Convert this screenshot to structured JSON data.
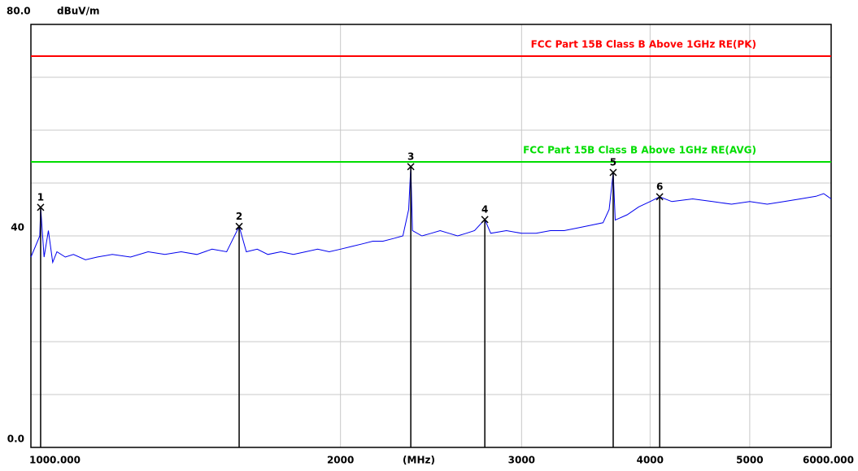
{
  "chart_data": {
    "type": "line",
    "xscale": "log",
    "y_unit": "dBuV/m",
    "x_unit": "(MHz)",
    "xlim": [
      1000,
      6000
    ],
    "ylim": [
      0,
      80
    ],
    "xticks": [
      {
        "value": 1000,
        "label": "1000.000"
      },
      2000,
      3000,
      4000,
      5000,
      {
        "value": 6000,
        "label": "6000.000"
      }
    ],
    "yticks": [
      {
        "value": 0,
        "label": "0.0"
      },
      40,
      {
        "value": 80,
        "label": "80.0"
      }
    ],
    "ygrid": [
      10,
      20,
      30,
      40,
      50,
      60,
      70
    ],
    "grid": true,
    "limits": [
      {
        "name": "FCC Part 15B Class B Above 1GHz RE(PK)",
        "value": 74,
        "color": "#ff0000"
      },
      {
        "name": "FCC Part 15B Class B Above 1GHz RE(AVG)",
        "value": 54,
        "color": "#00dd00"
      }
    ],
    "markers": [
      {
        "label": "1",
        "x": 1022,
        "y": 45.4
      },
      {
        "label": "2",
        "x": 1594,
        "y": 41.8
      },
      {
        "label": "3",
        "x": 2341,
        "y": 53.1
      },
      {
        "label": "4",
        "x": 2763,
        "y": 43.1
      },
      {
        "label": "5",
        "x": 3683,
        "y": 52.0
      },
      {
        "label": "6",
        "x": 4087,
        "y": 47.4
      }
    ],
    "series": [
      {
        "color": "#0000ee",
        "x": [
          1000,
          1010,
          1020,
          1022,
          1030,
          1040,
          1050,
          1060,
          1080,
          1100,
          1130,
          1160,
          1200,
          1250,
          1300,
          1350,
          1400,
          1450,
          1500,
          1550,
          1594,
          1620,
          1660,
          1700,
          1750,
          1800,
          1850,
          1900,
          1950,
          2000,
          2050,
          2100,
          2150,
          2200,
          2250,
          2300,
          2330,
          2341,
          2350,
          2400,
          2450,
          2500,
          2550,
          2600,
          2650,
          2700,
          2763,
          2800,
          2900,
          3000,
          3100,
          3200,
          3300,
          3400,
          3500,
          3600,
          3650,
          3683,
          3700,
          3800,
          3900,
          4000,
          4087,
          4200,
          4400,
          4600,
          4800,
          5000,
          5200,
          5400,
          5600,
          5800,
          5900,
          6000
        ],
        "values": [
          36,
          38,
          40,
          45.4,
          36,
          41,
          35,
          37,
          36,
          36.5,
          35.5,
          36,
          36.5,
          36,
          37,
          36.5,
          37,
          36.5,
          37.5,
          37,
          41.8,
          37,
          37.5,
          36.5,
          37,
          36.5,
          37,
          37.5,
          37,
          37.5,
          38,
          38.5,
          39,
          39,
          39.5,
          40,
          45,
          53.1,
          41,
          40,
          40.5,
          41,
          40.5,
          40,
          40.5,
          41,
          43.1,
          40.5,
          41,
          40.5,
          40.5,
          41,
          41,
          41.5,
          42,
          42.5,
          45,
          52,
          43,
          44,
          45.5,
          46.5,
          47.4,
          46.5,
          47,
          46.5,
          46,
          46.5,
          46,
          46.5,
          47,
          47.5,
          48,
          47
        ]
      }
    ]
  }
}
